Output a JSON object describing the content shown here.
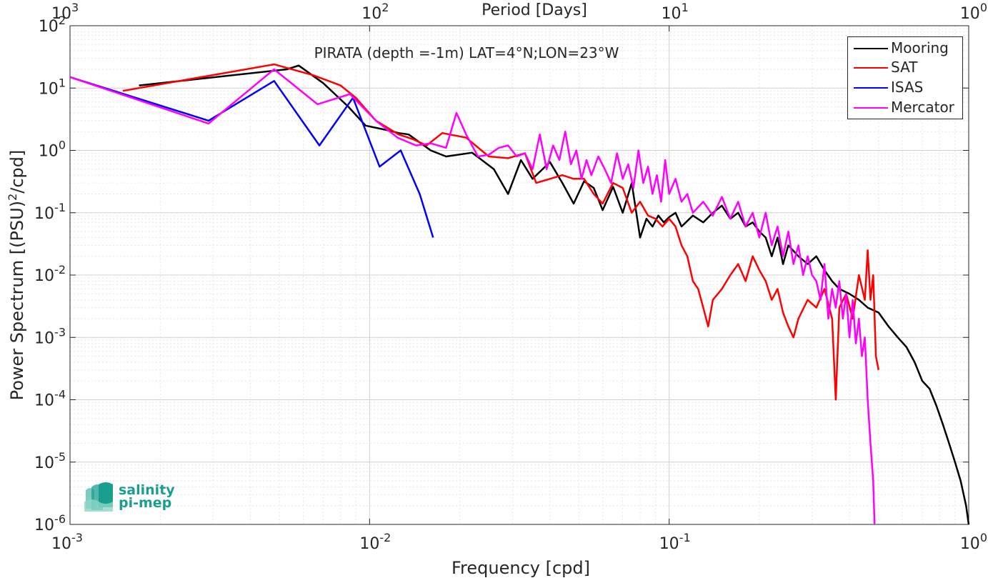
{
  "chart_data": {
    "type": "line",
    "title": "PIRATA (depth =-1m) LAT=4°N;LON=23°W",
    "xlabel": "Frequency [cpd]",
    "ylabel": "Power Spectrum [(PSU)",
    "ylabel_sup": "2",
    "ylabel_tail": "/cpd]",
    "top_xlabel": "Period [Days]",
    "xscale": "log",
    "yscale": "log",
    "xlim": [
      0.001,
      1
    ],
    "ylim": [
      1e-06,
      100
    ],
    "grid": true,
    "legend_placement": "top-right",
    "x_ticks": [
      {
        "value": 0.001,
        "base": "10",
        "exp": "-3"
      },
      {
        "value": 0.01,
        "base": "10",
        "exp": "-2"
      },
      {
        "value": 0.1,
        "base": "10",
        "exp": "-1"
      },
      {
        "value": 1,
        "base": "10",
        "exp": "0"
      }
    ],
    "top_ticks": [
      {
        "value": 0.001,
        "base": "10",
        "exp": "3"
      },
      {
        "value": 0.01,
        "base": "10",
        "exp": "2"
      },
      {
        "value": 0.1,
        "base": "10",
        "exp": "1"
      },
      {
        "value": 1,
        "base": "10",
        "exp": "0"
      }
    ],
    "y_ticks": [
      {
        "value": 100,
        "base": "10",
        "exp": "2"
      },
      {
        "value": 10,
        "base": "10",
        "exp": "1"
      },
      {
        "value": 1,
        "base": "10",
        "exp": "0"
      },
      {
        "value": 0.1,
        "base": "10",
        "exp": "-1"
      },
      {
        "value": 0.01,
        "base": "10",
        "exp": "-2"
      },
      {
        "value": 0.001,
        "base": "10",
        "exp": "-3"
      },
      {
        "value": 0.0001,
        "base": "10",
        "exp": "-4"
      },
      {
        "value": 1e-05,
        "base": "10",
        "exp": "-5"
      },
      {
        "value": 1e-06,
        "base": "10",
        "exp": "-6"
      }
    ],
    "series": [
      {
        "name": "Mooring",
        "color": "#000000",
        "x": [
          0.0017,
          0.0053,
          0.0058,
          0.007,
          0.0085,
          0.0097,
          0.0115,
          0.0125,
          0.0135,
          0.016,
          0.018,
          0.022,
          0.026,
          0.029,
          0.032,
          0.035,
          0.04,
          0.044,
          0.048,
          0.052,
          0.056,
          0.06,
          0.065,
          0.07,
          0.075,
          0.08,
          0.084,
          0.088,
          0.092,
          0.096,
          0.1,
          0.105,
          0.11,
          0.12,
          0.13,
          0.14,
          0.15,
          0.16,
          0.17,
          0.18,
          0.19,
          0.2,
          0.21,
          0.22,
          0.23,
          0.24,
          0.25,
          0.27,
          0.29,
          0.31,
          0.33,
          0.35,
          0.37,
          0.4,
          0.43,
          0.46,
          0.5,
          0.54,
          0.58,
          0.62,
          0.66,
          0.7,
          0.74,
          0.78,
          0.82,
          0.86,
          0.9,
          0.94,
          0.98,
          1.0
        ],
        "y": [
          11,
          20,
          23,
          12,
          5,
          2.5,
          2.1,
          1.9,
          1.8,
          1.0,
          0.8,
          0.92,
          0.5,
          0.2,
          0.7,
          0.35,
          0.65,
          0.3,
          0.14,
          0.32,
          0.25,
          0.11,
          0.26,
          0.1,
          0.3,
          0.04,
          0.08,
          0.06,
          0.09,
          0.07,
          0.085,
          0.1,
          0.06,
          0.09,
          0.07,
          0.1,
          0.13,
          0.08,
          0.1,
          0.06,
          0.07,
          0.05,
          0.04,
          0.02,
          0.04,
          0.015,
          0.03,
          0.02,
          0.015,
          0.02,
          0.012,
          0.008,
          0.006,
          0.005,
          0.004,
          0.003,
          0.0025,
          0.0015,
          0.001,
          0.0007,
          0.0004,
          0.0002,
          0.00015,
          8e-05,
          4e-05,
          2e-05,
          1e-05,
          5e-06,
          2e-06,
          1e-06
        ]
      },
      {
        "name": "SAT",
        "color": "#ff0000",
        "x": [
          0.0015,
          0.0048,
          0.0065,
          0.008,
          0.009,
          0.0105,
          0.0125,
          0.014,
          0.0155,
          0.0175,
          0.021,
          0.025,
          0.029,
          0.033,
          0.036,
          0.04,
          0.044,
          0.048,
          0.052,
          0.056,
          0.06,
          0.065,
          0.07,
          0.075,
          0.08,
          0.085,
          0.09,
          0.095,
          0.1,
          0.105,
          0.11,
          0.115,
          0.12,
          0.125,
          0.13,
          0.135,
          0.14,
          0.15,
          0.16,
          0.17,
          0.18,
          0.19,
          0.2,
          0.21,
          0.22,
          0.23,
          0.24,
          0.25,
          0.26,
          0.27,
          0.29,
          0.31,
          0.33,
          0.35,
          0.36,
          0.37,
          0.39,
          0.41,
          0.43,
          0.45,
          0.46,
          0.47,
          0.48,
          0.49,
          0.5
        ],
        "y": [
          9,
          24,
          16,
          11,
          7,
          3,
          1.8,
          1.5,
          1.2,
          1.9,
          1.6,
          0.8,
          0.75,
          0.9,
          0.3,
          0.35,
          0.4,
          0.35,
          0.35,
          0.2,
          0.14,
          0.3,
          0.25,
          0.1,
          0.15,
          0.09,
          0.08,
          0.06,
          0.08,
          0.06,
          0.03,
          0.02,
          0.008,
          0.006,
          0.003,
          0.0015,
          0.004,
          0.006,
          0.01,
          0.015,
          0.008,
          0.02,
          0.012,
          0.008,
          0.004,
          0.006,
          0.0025,
          0.0015,
          0.001,
          0.002,
          0.004,
          0.003,
          0.006,
          0.002,
          0.0001,
          0.003,
          0.005,
          0.002,
          0.01,
          0.004,
          0.025,
          0.004,
          0.01,
          0.0005,
          0.0003
        ]
      },
      {
        "name": "ISAS",
        "color": "#0000ff",
        "x": [
          0.001,
          0.0029,
          0.0048,
          0.0068,
          0.0088,
          0.0108,
          0.0127,
          0.0147,
          0.0163
        ],
        "y": [
          15,
          3,
          13,
          1.2,
          7,
          0.55,
          1.0,
          0.2,
          0.04
        ]
      },
      {
        "name": "Mercator",
        "color": "#ff00ff",
        "x": [
          0.001,
          0.0029,
          0.0048,
          0.0067,
          0.0086,
          0.0105,
          0.0124,
          0.0143,
          0.016,
          0.018,
          0.0195,
          0.021,
          0.023,
          0.025,
          0.027,
          0.029,
          0.031,
          0.033,
          0.035,
          0.037,
          0.039,
          0.041,
          0.043,
          0.045,
          0.047,
          0.049,
          0.051,
          0.053,
          0.055,
          0.058,
          0.061,
          0.064,
          0.067,
          0.07,
          0.073,
          0.076,
          0.079,
          0.082,
          0.085,
          0.088,
          0.091,
          0.094,
          0.097,
          0.1,
          0.105,
          0.11,
          0.115,
          0.12,
          0.13,
          0.14,
          0.15,
          0.16,
          0.17,
          0.18,
          0.19,
          0.2,
          0.21,
          0.22,
          0.23,
          0.24,
          0.25,
          0.26,
          0.27,
          0.28,
          0.29,
          0.3,
          0.31,
          0.32,
          0.33,
          0.34,
          0.35,
          0.36,
          0.37,
          0.38,
          0.39,
          0.4,
          0.41,
          0.42,
          0.43,
          0.44,
          0.45,
          0.46,
          0.47,
          0.48,
          0.485
        ],
        "y": [
          15,
          2.7,
          20,
          5.5,
          8,
          3,
          1.6,
          1.2,
          1.3,
          1.1,
          4,
          1.8,
          0.8,
          0.85,
          1.1,
          1.2,
          0.8,
          0.9,
          0.5,
          1.8,
          0.5,
          1.2,
          0.7,
          2.0,
          0.6,
          1.0,
          0.35,
          0.7,
          0.4,
          0.8,
          0.5,
          0.3,
          0.9,
          0.35,
          0.6,
          0.25,
          1.0,
          0.3,
          0.55,
          0.2,
          0.4,
          0.15,
          0.7,
          0.2,
          0.35,
          0.15,
          0.2,
          0.1,
          0.15,
          0.09,
          0.18,
          0.08,
          0.15,
          0.06,
          0.1,
          0.04,
          0.1,
          0.03,
          0.06,
          0.02,
          0.05,
          0.015,
          0.03,
          0.01,
          0.02,
          0.01,
          0.008,
          0.004,
          0.015,
          0.002,
          0.006,
          0.003,
          0.008,
          0.002,
          0.005,
          0.001,
          0.004,
          0.0008,
          0.002,
          0.0005,
          0.001,
          0.0001,
          2e-05,
          5e-06,
          1e-06
        ]
      }
    ]
  },
  "logo": {
    "line1": "salinity",
    "line2": "pi-mep",
    "color": "#1a9e8f"
  }
}
